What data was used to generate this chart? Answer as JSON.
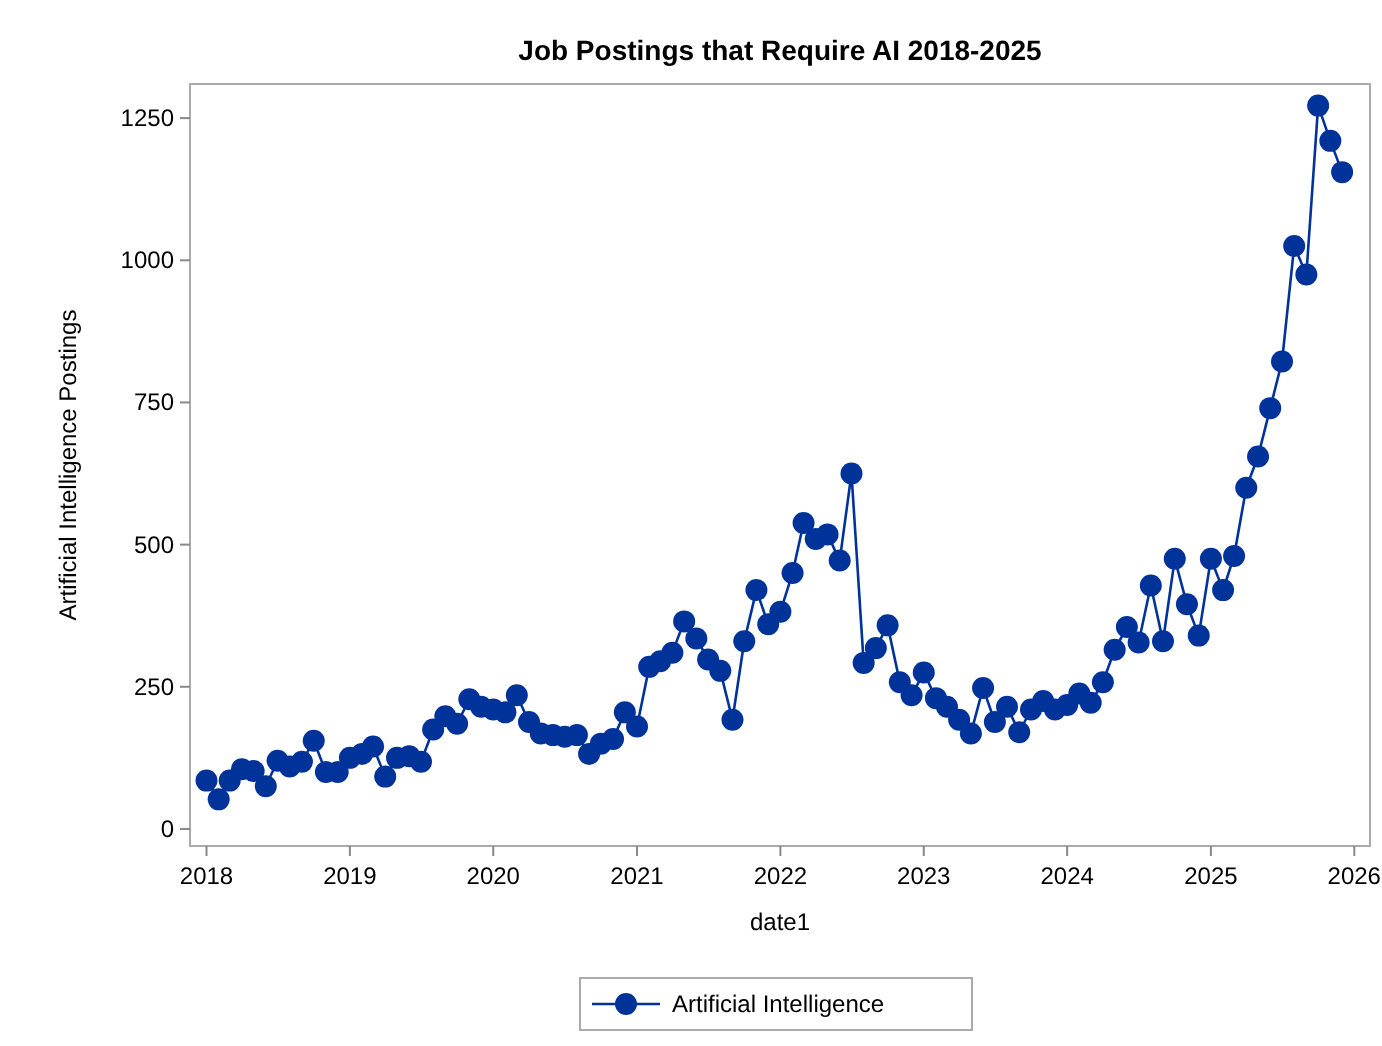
{
  "chart_data": {
    "type": "line",
    "title": "Job Postings that Require AI 2018-2025",
    "xlabel": "date1",
    "ylabel": "Artificial Intelligence Postings",
    "x": [
      "2018-01",
      "2018-02",
      "2018-03",
      "2018-04",
      "2018-05",
      "2018-06",
      "2018-07",
      "2018-08",
      "2018-09",
      "2018-10",
      "2018-11",
      "2018-12",
      "2019-01",
      "2019-02",
      "2019-03",
      "2019-04",
      "2019-05",
      "2019-06",
      "2019-07",
      "2019-08",
      "2019-09",
      "2019-10",
      "2019-11",
      "2019-12",
      "2020-01",
      "2020-02",
      "2020-03",
      "2020-04",
      "2020-05",
      "2020-06",
      "2020-07",
      "2020-08",
      "2020-09",
      "2020-10",
      "2020-11",
      "2020-12",
      "2021-01",
      "2021-02",
      "2021-03",
      "2021-04",
      "2021-05",
      "2021-06",
      "2021-07",
      "2021-08",
      "2021-09",
      "2021-10",
      "2021-11",
      "2021-12",
      "2022-01",
      "2022-02",
      "2022-03",
      "2022-04",
      "2022-05",
      "2022-06",
      "2022-07",
      "2022-08",
      "2022-09",
      "2022-10",
      "2022-11",
      "2022-12",
      "2023-01",
      "2023-02",
      "2023-03",
      "2023-04",
      "2023-05",
      "2023-06",
      "2023-07",
      "2023-08",
      "2023-09",
      "2023-10",
      "2023-11",
      "2023-12",
      "2024-01",
      "2024-02",
      "2024-03",
      "2024-04",
      "2024-05",
      "2024-06",
      "2024-07",
      "2024-08",
      "2024-09",
      "2024-10",
      "2024-11",
      "2024-12",
      "2025-01",
      "2025-02",
      "2025-03",
      "2025-04",
      "2025-05",
      "2025-06",
      "2025-07",
      "2025-08",
      "2025-09",
      "2025-10",
      "2025-11",
      "2025-12"
    ],
    "series": [
      {
        "name": "Artificial Intelligence",
        "color": "#003399",
        "values": [
          85,
          52,
          85,
          105,
          102,
          75,
          120,
          110,
          118,
          155,
          100,
          100,
          125,
          132,
          145,
          92,
          125,
          128,
          118,
          175,
          198,
          185,
          228,
          215,
          210,
          205,
          235,
          188,
          168,
          165,
          162,
          165,
          132,
          150,
          158,
          205,
          180,
          285,
          295,
          310,
          365,
          335,
          298,
          278,
          192,
          330,
          420,
          360,
          382,
          450,
          538,
          510,
          518,
          472,
          625,
          292,
          318,
          358,
          258,
          235,
          275,
          230,
          215,
          192,
          168,
          248,
          188,
          215,
          170,
          210,
          225,
          210,
          218,
          238,
          222,
          258,
          315,
          355,
          328,
          428,
          330,
          475,
          395,
          340,
          475,
          420,
          480,
          600,
          655,
          740,
          822,
          1025,
          975,
          1272,
          1210,
          1155
        ]
      }
    ],
    "xlim": [
      "2017-11-20",
      "2026-02-10"
    ],
    "xticks": [
      {
        "value": "2018",
        "label": "2018"
      },
      {
        "value": "2019",
        "label": "2019"
      },
      {
        "value": "2020",
        "label": "2020"
      },
      {
        "value": "2021",
        "label": "2021"
      },
      {
        "value": "2022",
        "label": "2022"
      },
      {
        "value": "2023",
        "label": "2023"
      },
      {
        "value": "2024",
        "label": "2024"
      },
      {
        "value": "2025",
        "label": "2025"
      },
      {
        "value": "2026",
        "label": "2026"
      }
    ],
    "ylim": [
      -30,
      1310
    ],
    "yticks": [
      0,
      250,
      500,
      750,
      1000,
      1250
    ],
    "marker": "circle",
    "line_style": "solid",
    "legend": "bottom",
    "grid": false
  }
}
